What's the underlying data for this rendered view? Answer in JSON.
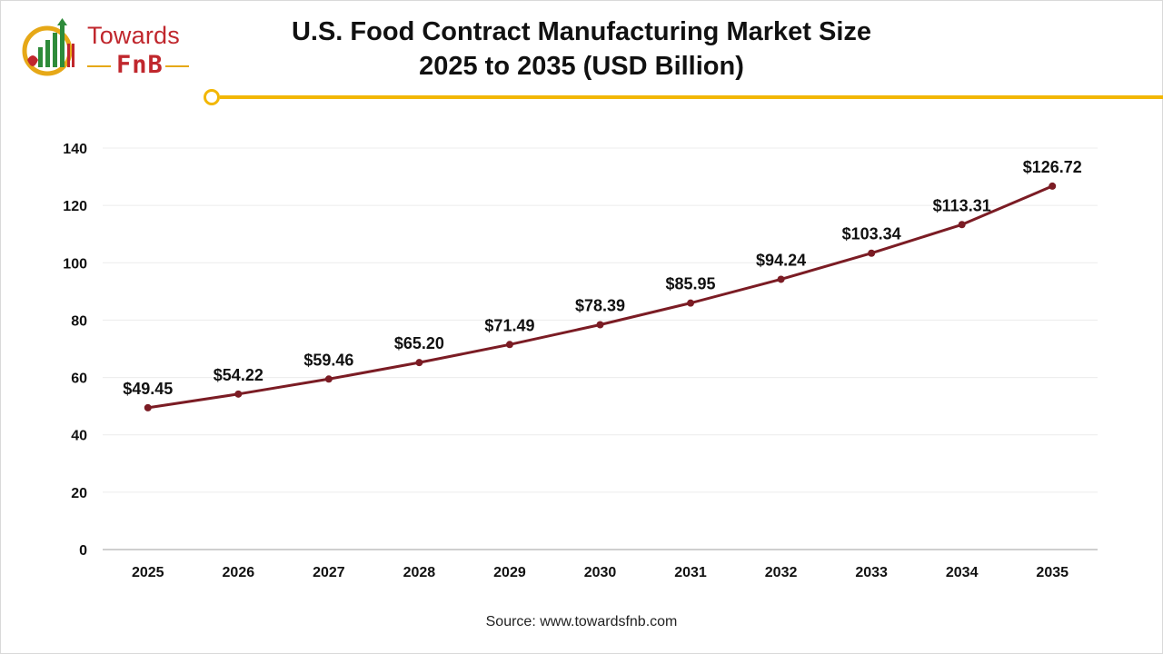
{
  "logo": {
    "word": "Towards",
    "sub": "FnB",
    "colors": {
      "red": "#c0272d",
      "green": "#2e8b3a",
      "gold": "#e6a817"
    }
  },
  "header": {
    "title_line1": "U.S. Food Contract Manufacturing Market Size",
    "title_line2": "2025 to 2035 (USD Billion)",
    "accent_color": "#f2b705"
  },
  "source": "Source: www.towardsfnb.com",
  "chart_data": {
    "type": "line",
    "title": "U.S. Food Contract Manufacturing Market Size 2025 to 2035 (USD Billion)",
    "xlabel": "",
    "ylabel": "",
    "categories": [
      "2025",
      "2026",
      "2027",
      "2028",
      "2029",
      "2030",
      "2031",
      "2032",
      "2033",
      "2034",
      "2035"
    ],
    "series": [
      {
        "values": [
          49.45,
          54.22,
          59.46,
          65.2,
          71.49,
          78.39,
          85.95,
          94.24,
          103.34,
          113.31,
          126.72
        ],
        "labels": [
          "$49.45",
          "$54.22",
          "$59.46",
          "$65.20",
          "$71.49",
          "$78.39",
          "$85.95",
          "$94.24",
          "$103.34",
          "$113.31",
          "$126.72"
        ],
        "color": "#7b1c24"
      }
    ],
    "ylim": [
      0,
      140
    ],
    "yticks": [
      0,
      20,
      40,
      60,
      80,
      100,
      120,
      140
    ],
    "grid": true,
    "legend": "none"
  }
}
